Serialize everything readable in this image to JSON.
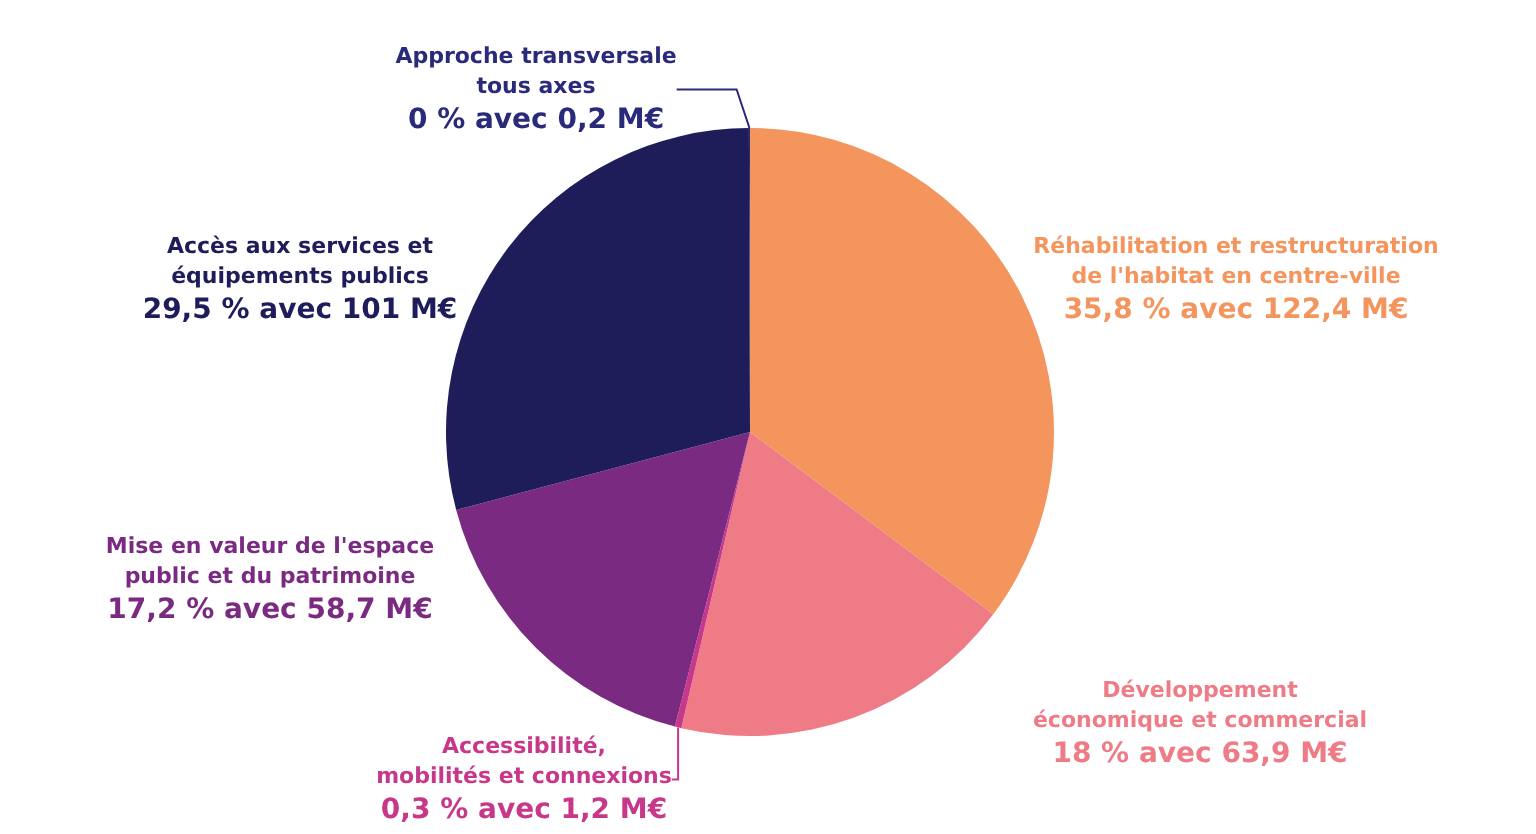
{
  "chart_data": {
    "type": "pie",
    "categories": [
      "Réhabilitation et restructuration de l'habitat en centre-ville",
      "Développement économique et commercial",
      "Accessibilité, mobilités et connexions",
      "Mise en valeur de l'espace public et du patrimoine",
      "Accès aux services et équipements publics",
      "Approche transversale tous axes"
    ],
    "values": [
      122.4,
      63.9,
      1.2,
      58.7,
      101,
      0.2
    ],
    "value_labels": [
      "35,8 % avec 122,4 M€",
      "18 % avec 63,9 M€",
      "0,3 % avec 1,2 M€",
      "17,2 % avec 58,7 M€",
      "29,5 % avec 101 M€",
      "0 % avec 0,2 M€"
    ],
    "colors": [
      "#f4955e",
      "#ef7b86",
      "#c8388a",
      "#7b2a82",
      "#1e1d5a",
      "#2a2a7a"
    ],
    "legend": false
  }
}
